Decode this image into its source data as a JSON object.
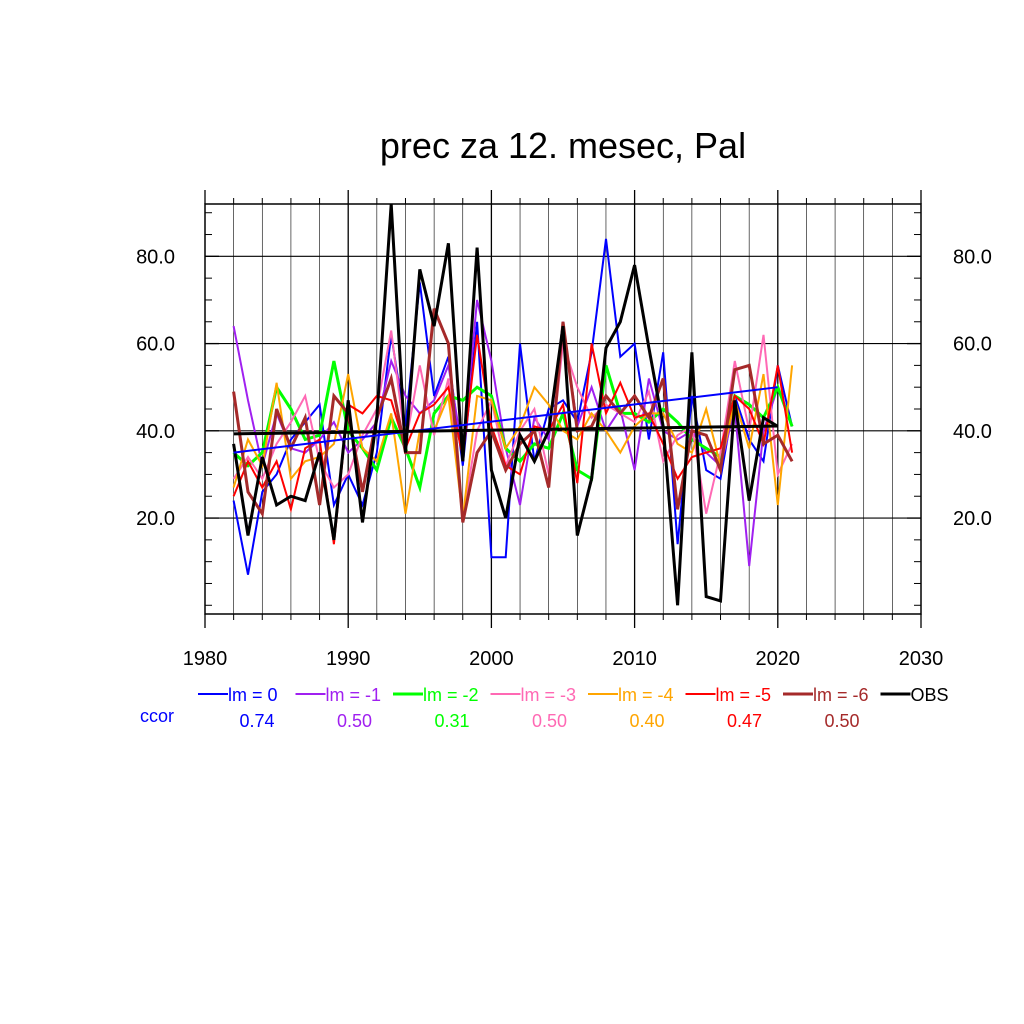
{
  "chart_data": {
    "type": "line",
    "title": "prec za 12. mesec, Pal",
    "xlim": [
      1980,
      2030
    ],
    "ylim": [
      -2,
      92
    ],
    "xticks": [
      1980,
      1990,
      2000,
      2010,
      2020,
      2030
    ],
    "xtick_labels": [
      "1980",
      "1990",
      "2000",
      "2010",
      "2020",
      "2030"
    ],
    "yticks": [
      20,
      40,
      60,
      80
    ],
    "ytick_labels": [
      "20.0",
      "40.0",
      "60.0",
      "80.0"
    ],
    "grid": true,
    "legend_placement": "bottom",
    "ccor_label": "ccor",
    "ccor_label_color": "#0000ff",
    "x": [
      1982,
      1983,
      1984,
      1985,
      1986,
      1987,
      1988,
      1989,
      1990,
      1991,
      1992,
      1993,
      1994,
      1995,
      1996,
      1997,
      1998,
      1999,
      2000,
      2001,
      2002,
      2003,
      2004,
      2005,
      2006,
      2007,
      2008,
      2009,
      2010,
      2011,
      2012,
      2013,
      2014,
      2015,
      2016,
      2017,
      2018,
      2019,
      2020,
      2021
    ],
    "series": [
      {
        "name": "lm = 0",
        "ccor": "0.74",
        "color": "#0000ff",
        "width": 2,
        "values": [
          24,
          7,
          26,
          30,
          38,
          42,
          46,
          23,
          30,
          23,
          35,
          62,
          41,
          74,
          48,
          57,
          32,
          65,
          11,
          11,
          60,
          33,
          45,
          47,
          42,
          58,
          84,
          57,
          60,
          38,
          58,
          14,
          48,
          31,
          29,
          48,
          38,
          33,
          55,
          41
        ]
      },
      {
        "name": "lm = -1",
        "ccor": "0.50",
        "color": "#a020f0",
        "width": 2,
        "values": [
          64,
          47,
          32,
          44,
          36,
          35,
          38,
          42,
          35,
          38,
          42,
          56,
          48,
          44,
          47,
          55,
          35,
          70,
          56,
          36,
          23,
          43,
          38,
          65,
          41,
          50,
          40,
          45,
          31,
          52,
          40,
          38,
          40,
          35,
          32,
          45,
          9,
          40,
          50,
          41
        ]
      },
      {
        "name": "lm = -2",
        "ccor": "0.31",
        "color": "#00ff00",
        "width": 3,
        "values": [
          35,
          32,
          35,
          50,
          45,
          38,
          39,
          56,
          40,
          36,
          31,
          43,
          36,
          27,
          44,
          48,
          47,
          50,
          48,
          36,
          33,
          37,
          36,
          44,
          31,
          29,
          55,
          44,
          44,
          42,
          45,
          42,
          38,
          36,
          34,
          48,
          46,
          43,
          50,
          41
        ]
      },
      {
        "name": "lm = -3",
        "ccor": "0.50",
        "color": "#ff69b4",
        "width": 2,
        "values": [
          29,
          34,
          29,
          37,
          42,
          48,
          33,
          27,
          30,
          39,
          45,
          63,
          37,
          55,
          39,
          52,
          20,
          40,
          47,
          32,
          40,
          45,
          30,
          60,
          50,
          43,
          46,
          44,
          42,
          49,
          33,
          39,
          41,
          21,
          35,
          56,
          40,
          62,
          30,
          37
        ]
      },
      {
        "name": "lm = -4",
        "ccor": "0.40",
        "color": "#ffa500",
        "width": 2,
        "values": [
          27,
          38,
          32,
          51,
          29,
          33,
          34,
          37,
          53,
          36,
          33,
          44,
          21,
          40,
          40,
          48,
          20,
          48,
          47,
          36,
          41,
          50,
          46,
          40,
          38,
          44,
          40,
          35,
          41,
          44,
          44,
          37,
          35,
          45,
          32,
          47,
          36,
          53,
          23,
          55
        ]
      },
      {
        "name": "lm = -5",
        "ccor": "0.47",
        "color": "#ff0000",
        "width": 2,
        "values": [
          25,
          33,
          27,
          33,
          22,
          36,
          38,
          14,
          46,
          44,
          48,
          47,
          36,
          44,
          46,
          50,
          34,
          62,
          41,
          32,
          30,
          41,
          40,
          46,
          28,
          60,
          44,
          51,
          43,
          44,
          37,
          29,
          34,
          35,
          36,
          48,
          45,
          37,
          55,
          35
        ]
      },
      {
        "name": "lm = -6",
        "ccor": "0.50",
        "color": "#a52a2a",
        "width": 3,
        "values": [
          49,
          26,
          21,
          45,
          36,
          43,
          23,
          48,
          44,
          26,
          43,
          52,
          35,
          35,
          68,
          60,
          19,
          35,
          40,
          31,
          37,
          40,
          27,
          65,
          40,
          41,
          48,
          44,
          48,
          43,
          52,
          22,
          40,
          39,
          31,
          54,
          55,
          37,
          39,
          33
        ]
      },
      {
        "name": "OBS",
        "ccor": "",
        "color": "#000000",
        "width": 3,
        "values": [
          37,
          16,
          34,
          23,
          25,
          24,
          35,
          15,
          47,
          19,
          43,
          92,
          35,
          77,
          64,
          83,
          33,
          82,
          31,
          20,
          39,
          33,
          40,
          64,
          16,
          29,
          59,
          65,
          78,
          59,
          41,
          0,
          58,
          2,
          1,
          47,
          24,
          43,
          41,
          null
        ]
      }
    ],
    "trendlines": [
      {
        "color": "#0000ff",
        "width": 2,
        "x": [
          1982,
          2020
        ],
        "y": [
          35,
          50
        ]
      },
      {
        "color": "#000000",
        "width": 3,
        "x": [
          1982,
          2020
        ],
        "y": [
          39.3,
          41.1
        ]
      }
    ]
  }
}
